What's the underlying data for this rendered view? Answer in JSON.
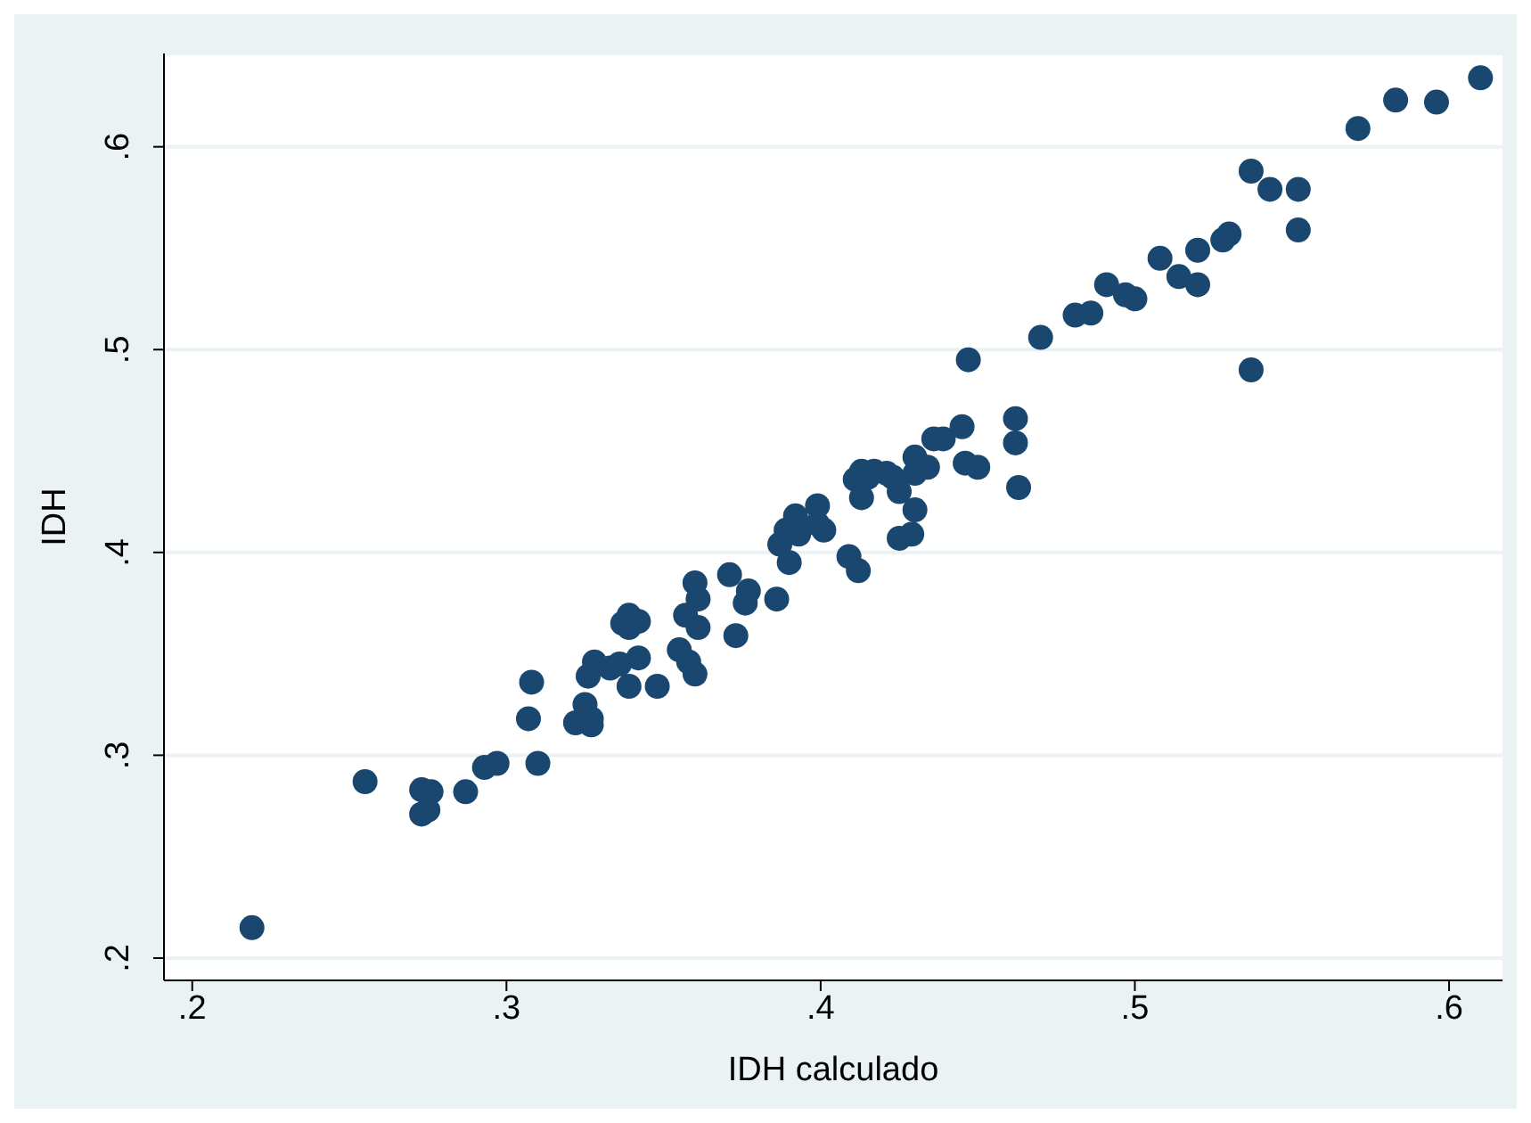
{
  "chart_data": {
    "type": "scatter",
    "xlabel": "IDH calculado",
    "ylabel": "IDH",
    "x": [
      0.219,
      0.255,
      0.273,
      0.276,
      0.273,
      0.275,
      0.287,
      0.293,
      0.297,
      0.308,
      0.307,
      0.31,
      0.322,
      0.325,
      0.326,
      0.328,
      0.327,
      0.327,
      0.333,
      0.336,
      0.337,
      0.339,
      0.342,
      0.339,
      0.342,
      0.348,
      0.339,
      0.355,
      0.357,
      0.358,
      0.36,
      0.36,
      0.361,
      0.361,
      0.371,
      0.373,
      0.376,
      0.377,
      0.386,
      0.387,
      0.389,
      0.39,
      0.392,
      0.393,
      0.399,
      0.399,
      0.401,
      0.409,
      0.411,
      0.413,
      0.413,
      0.412,
      0.415,
      0.417,
      0.421,
      0.423,
      0.425,
      0.425,
      0.429,
      0.43,
      0.43,
      0.43,
      0.434,
      0.436,
      0.439,
      0.445,
      0.447,
      0.446,
      0.45,
      0.462,
      0.462,
      0.463,
      0.47,
      0.481,
      0.486,
      0.491,
      0.497,
      0.5,
      0.508,
      0.514,
      0.52,
      0.52,
      0.528,
      0.53,
      0.537,
      0.537,
      0.543,
      0.552,
      0.552,
      0.571,
      0.583,
      0.596,
      0.61
    ],
    "series": [
      {
        "color": "#1a476f",
        "values": [
          0.215,
          0.287,
          0.283,
          0.282,
          0.271,
          0.273,
          0.282,
          0.294,
          0.296,
          0.336,
          0.318,
          0.296,
          0.316,
          0.325,
          0.339,
          0.346,
          0.318,
          0.315,
          0.343,
          0.345,
          0.365,
          0.369,
          0.366,
          0.334,
          0.348,
          0.334,
          0.363,
          0.352,
          0.369,
          0.346,
          0.385,
          0.34,
          0.363,
          0.377,
          0.389,
          0.359,
          0.375,
          0.381,
          0.377,
          0.404,
          0.411,
          0.395,
          0.418,
          0.409,
          0.423,
          0.414,
          0.411,
          0.398,
          0.436,
          0.44,
          0.427,
          0.391,
          0.437,
          0.44,
          0.439,
          0.437,
          0.43,
          0.407,
          0.409,
          0.447,
          0.439,
          0.421,
          0.442,
          0.456,
          0.456,
          0.462,
          0.495,
          0.444,
          0.442,
          0.466,
          0.454,
          0.432,
          0.506,
          0.517,
          0.518,
          0.532,
          0.527,
          0.525,
          0.545,
          0.536,
          0.549,
          0.532,
          0.554,
          0.557,
          0.588,
          0.49,
          0.579,
          0.579,
          0.559,
          0.609,
          0.623,
          0.622,
          0.634
        ]
      }
    ],
    "xlim": [
      0.191,
      0.617
    ],
    "xticks": [
      {
        "value": 0.2,
        "label": ".2"
      },
      {
        "value": 0.3,
        "label": ".3"
      },
      {
        "value": 0.4,
        "label": ".4"
      },
      {
        "value": 0.5,
        "label": ".5"
      },
      {
        "value": 0.6,
        "label": ".6"
      }
    ],
    "ylim": [
      0.189,
      0.646
    ],
    "yticks": [
      {
        "value": 0.2,
        "label": ".2"
      },
      {
        "value": 0.3,
        "label": ".3"
      },
      {
        "value": 0.4,
        "label": ".4"
      },
      {
        "value": 0.5,
        "label": ".5"
      },
      {
        "value": 0.6,
        "label": ".6"
      }
    ],
    "grid": "y",
    "marker": "circle"
  }
}
